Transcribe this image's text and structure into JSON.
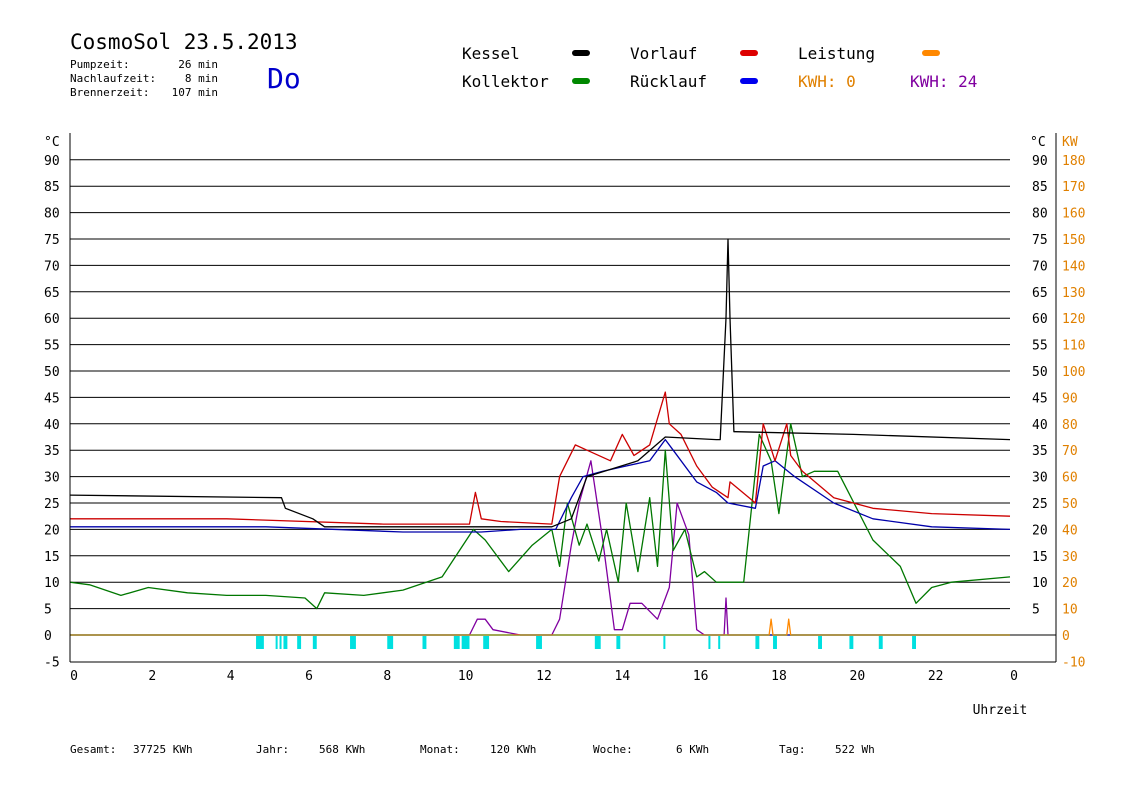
{
  "header": {
    "title": "CosmoSol 23.5.2013",
    "weekday": "Do",
    "stats": [
      {
        "label": "Pumpzeit:",
        "value": "26 min"
      },
      {
        "label": "Nachlaufzeit:",
        "value": "8 min"
      },
      {
        "label": "Brennerzeit:",
        "value": "107 min"
      }
    ]
  },
  "legend": {
    "kessel": "Kessel",
    "vorlauf": "Vorlauf",
    "leistung": "Leistung",
    "kollektor": "Kollektor",
    "ruecklauf": "Rücklauf",
    "kwh_orange": "KWH: 0",
    "kwh_purple": "KWH: 24"
  },
  "footer": {
    "gesamt_label": "Gesamt:",
    "gesamt_value": "37725 KWh",
    "jahr_label": "Jahr:",
    "jahr_value": "568 KWh",
    "monat_label": "Monat:",
    "monat_value": "120 KWh",
    "woche_label": "Woche:",
    "woche_value": "6 KWh",
    "tag_label": "Tag:",
    "tag_value": "522 Wh"
  },
  "colors": {
    "kessel": "#000000",
    "vorlauf": "#cc0000",
    "leistung": "#ff8800",
    "kollektor": "#007700",
    "ruecklauf": "#0000aa",
    "kwh_purple": "#8000a0",
    "pump": "#00e0e0",
    "right_axis": "#e08000"
  },
  "chart_data": {
    "type": "line",
    "xlabel": "Uhrzeit",
    "ylabel_left": "°C",
    "ylabel_right": "KW",
    "xlim": [
      0,
      24
    ],
    "ylim": [
      -5,
      95
    ],
    "ylim_right": [
      -10,
      190
    ],
    "grid": true,
    "x_tick_labels": [
      "0",
      "2",
      "4",
      "6",
      "8",
      "10",
      "12",
      "14",
      "16",
      "18",
      "20",
      "22",
      "0"
    ],
    "y_tick_labels_left": [
      "-5",
      "0",
      "5",
      "10",
      "15",
      "20",
      "25",
      "30",
      "35",
      "40",
      "45",
      "50",
      "55",
      "60",
      "65",
      "70",
      "75",
      "80",
      "85",
      "90"
    ],
    "y_tick_labels_right_c": [
      "5",
      "10",
      "15",
      "20",
      "25",
      "30",
      "35",
      "40",
      "45",
      "50",
      "55",
      "60",
      "65",
      "70",
      "75",
      "80",
      "85",
      "90"
    ],
    "y_tick_labels_right_kw": [
      "-10",
      "0",
      "10",
      "20",
      "30",
      "40",
      "50",
      "60",
      "70",
      "80",
      "90",
      "100",
      "110",
      "120",
      "130",
      "140",
      "150",
      "160",
      "170",
      "180"
    ],
    "series": [
      {
        "name": "Kessel",
        "key": "kessel",
        "x": [
          0,
          5.4,
          5.5,
          6.2,
          6.5,
          10.5,
          12.3,
          12.8,
          13.2,
          14.5,
          15.2,
          16.5,
          16.6,
          16.75,
          16.8,
          16.85,
          16.95,
          17.0,
          20.0,
          24.0
        ],
        "y": [
          26.5,
          26,
          24,
          22,
          20.5,
          20.5,
          20.5,
          22,
          30,
          33,
          37.5,
          37,
          37,
          60,
          75,
          60,
          38.5,
          38.5,
          38,
          37
        ]
      },
      {
        "name": "Vorlauf",
        "key": "vorlauf",
        "x": [
          0,
          4,
          8,
          10.2,
          10.35,
          10.5,
          11,
          12.3,
          12.5,
          12.9,
          13.2,
          13.8,
          14.1,
          14.4,
          14.8,
          15.2,
          15.3,
          15.6,
          16.0,
          16.4,
          16.8,
          16.85,
          17.5,
          17.7,
          18.0,
          18.3,
          18.4,
          18.7,
          19.5,
          20.5,
          22,
          24
        ],
        "y": [
          22,
          22,
          21,
          21,
          27,
          22,
          21.5,
          21,
          30,
          36,
          35,
          33,
          38,
          34,
          36,
          46,
          40,
          38,
          32,
          28,
          26,
          29,
          25,
          40,
          33,
          40,
          34,
          31,
          26,
          24,
          23,
          22.5
        ]
      },
      {
        "name": "Rücklauf",
        "key": "ruecklauf",
        "x": [
          0,
          5,
          8.5,
          10.5,
          11.5,
          12.4,
          12.8,
          13.1,
          13.6,
          14.2,
          14.8,
          15.2,
          15.4,
          16.0,
          16.5,
          16.8,
          17.5,
          17.7,
          18.0,
          18.5,
          19.5,
          20.5,
          22,
          24
        ],
        "y": [
          20.5,
          20.5,
          19.5,
          19.5,
          20,
          20,
          26,
          30,
          31,
          32,
          33,
          37,
          35,
          29,
          27,
          25,
          24,
          32,
          33,
          30,
          25,
          22,
          20.5,
          20
        ]
      },
      {
        "name": "Kollektor",
        "key": "kollektor",
        "x": [
          0,
          0.5,
          1.3,
          2,
          3,
          4,
          5,
          6,
          6.3,
          6.5,
          7.5,
          8.5,
          9.5,
          10.3,
          10.6,
          11.2,
          11.8,
          12.3,
          12.5,
          12.7,
          13.0,
          13.2,
          13.5,
          13.7,
          14.0,
          14.2,
          14.5,
          14.8,
          15.0,
          15.2,
          15.4,
          15.7,
          16.0,
          16.2,
          16.5,
          16.8,
          17.2,
          17.6,
          17.9,
          18.1,
          18.4,
          18.7,
          19.0,
          19.6,
          20.5,
          21.2,
          21.6,
          22,
          22.5,
          24
        ],
        "y": [
          10,
          9.5,
          7.5,
          9,
          8,
          7.5,
          7.5,
          7,
          5,
          8,
          7.5,
          8.5,
          11,
          20,
          18,
          12,
          17,
          20,
          13,
          25,
          17,
          21,
          14,
          20,
          10,
          25,
          12,
          26,
          13,
          35,
          16,
          20,
          11,
          12,
          10,
          10,
          10,
          38,
          33,
          23,
          40,
          30,
          31,
          31,
          18,
          13,
          6,
          9,
          10,
          11
        ]
      },
      {
        "name": "KWH: 24",
        "key": "kwh_purple",
        "x": [
          0,
          10.2,
          10.4,
          10.6,
          10.8,
          11.5,
          12.3,
          12.5,
          12.8,
          13.0,
          13.3,
          13.6,
          13.9,
          14.1,
          14.3,
          14.6,
          15.0,
          15.3,
          15.5,
          15.8,
          16.0,
          16.2,
          16.5,
          16.7,
          16.75,
          16.8,
          17.0,
          24
        ],
        "y": [
          0,
          0,
          3,
          3,
          1,
          0,
          0,
          3,
          17,
          25,
          33,
          18,
          1,
          1,
          6,
          6,
          3,
          9,
          25,
          19,
          1,
          0,
          0,
          0,
          7,
          0,
          0,
          0
        ]
      },
      {
        "name": "Leistung",
        "key": "leistung",
        "x": [
          0,
          17.85,
          17.9,
          17.95,
          18.3,
          18.35,
          18.4,
          24
        ],
        "y": [
          0,
          0,
          3,
          0,
          0,
          3,
          0,
          0
        ]
      }
    ],
    "pump_on_hours": [
      [
        4.75,
        4.95
      ],
      [
        5.25,
        5.3
      ],
      [
        5.35,
        5.4
      ],
      [
        5.45,
        5.55
      ],
      [
        5.8,
        5.9
      ],
      [
        6.2,
        6.3
      ],
      [
        7.15,
        7.3
      ],
      [
        8.1,
        8.25
      ],
      [
        9.0,
        9.1
      ],
      [
        9.8,
        9.95
      ],
      [
        10.0,
        10.2
      ],
      [
        10.55,
        10.7
      ],
      [
        11.9,
        12.05
      ],
      [
        13.4,
        13.55
      ],
      [
        13.95,
        14.05
      ],
      [
        15.15,
        15.2
      ],
      [
        16.3,
        16.35
      ],
      [
        16.55,
        16.6
      ],
      [
        17.5,
        17.6
      ],
      [
        17.95,
        18.05
      ],
      [
        19.1,
        19.2
      ],
      [
        19.9,
        20.0
      ],
      [
        20.65,
        20.75
      ],
      [
        21.5,
        21.6
      ]
    ]
  }
}
